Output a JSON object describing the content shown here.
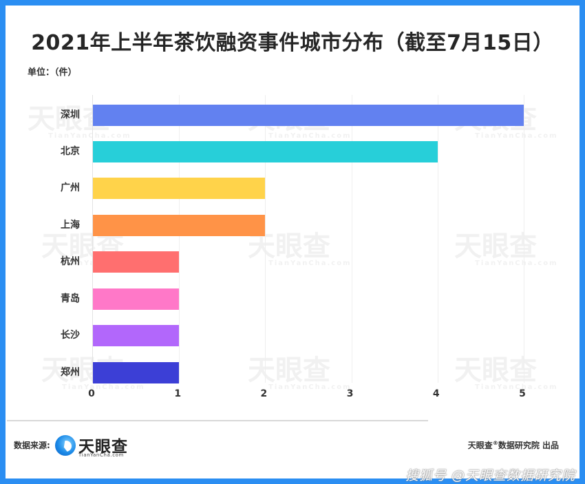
{
  "title": "2021年上半年茶饮融资事件城市分布（截至7月15日）",
  "unit_label": "单位：（件）",
  "footer": {
    "source_label": "数据来源:",
    "logo_name": "天眼查",
    "logo_sub": "TianYanCha.com",
    "credit": "天眼查",
    "credit_mark": "®",
    "credit_rest": "数据研究院 出品",
    "platform_watermark": "搜狐号 @天眼查数据研究院"
  },
  "watermark": {
    "text": "天眼查",
    "sub": "TianYanCha.com"
  },
  "colors": {
    "frame": "#2b8ef2",
    "bars": [
      "#6281f0",
      "#27cfd9",
      "#ffd34a",
      "#ff9347",
      "#ff6f6f",
      "#ff78c8",
      "#b267fb",
      "#3c3fd6"
    ]
  },
  "chart_data": {
    "type": "bar",
    "orientation": "horizontal",
    "title": "2021年上半年茶饮融资事件城市分布（截至7月15日）",
    "xlabel": "",
    "ylabel": "单位：（件）",
    "categories": [
      "深圳",
      "北京",
      "广州",
      "上海",
      "杭州",
      "青岛",
      "长沙",
      "郑州"
    ],
    "values": [
      5,
      4,
      2,
      2,
      1,
      1,
      1,
      1
    ],
    "xlim": [
      0,
      5
    ],
    "x_ticks": [
      "0",
      "1",
      "2",
      "3",
      "4",
      "5"
    ],
    "grid": true,
    "legend": "none"
  }
}
